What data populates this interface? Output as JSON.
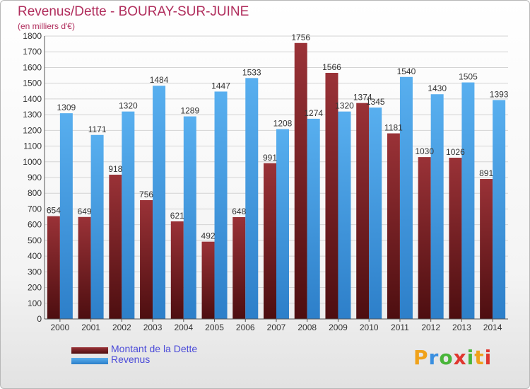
{
  "title": "Revenus/Dette - BOURAY-SUR-JUINE",
  "subtitle": "(en milliers d'€)",
  "legend": {
    "debt_label": "Montant de la Dette",
    "revenue_label": "Revenus"
  },
  "logo": {
    "text": "Proxiti"
  },
  "colors": {
    "debt": "#8b2a2f",
    "revenue": "#4aa1e6",
    "title": "#b02d5c",
    "legend_text": "#4a4ad8"
  },
  "chart_data": {
    "type": "bar",
    "categories": [
      "2000",
      "2001",
      "2002",
      "2003",
      "2004",
      "2005",
      "2006",
      "2007",
      "2008",
      "2009",
      "2010",
      "2011",
      "2012",
      "2013",
      "2014"
    ],
    "series": [
      {
        "name": "Montant de la Dette",
        "values": [
          654,
          649,
          918,
          756,
          621,
          492,
          648,
          991,
          1756,
          1566,
          1374,
          1181,
          1030,
          1026,
          891
        ]
      },
      {
        "name": "Revenus",
        "values": [
          1309,
          1171,
          1320,
          1484,
          1289,
          1447,
          1533,
          1208,
          1274,
          1320,
          1345,
          1540,
          1430,
          1505,
          1393
        ]
      }
    ],
    "ylim": [
      0,
      1800
    ],
    "yticks": [
      0,
      100,
      200,
      300,
      400,
      500,
      600,
      700,
      800,
      900,
      1000,
      1100,
      1200,
      1300,
      1400,
      1500,
      1600,
      1700,
      1800
    ],
    "grid": true,
    "legend_position": "bottom-left",
    "title": "Revenus/Dette - BOURAY-SUR-JUINE",
    "ylabel": "(en milliers d'€)"
  }
}
